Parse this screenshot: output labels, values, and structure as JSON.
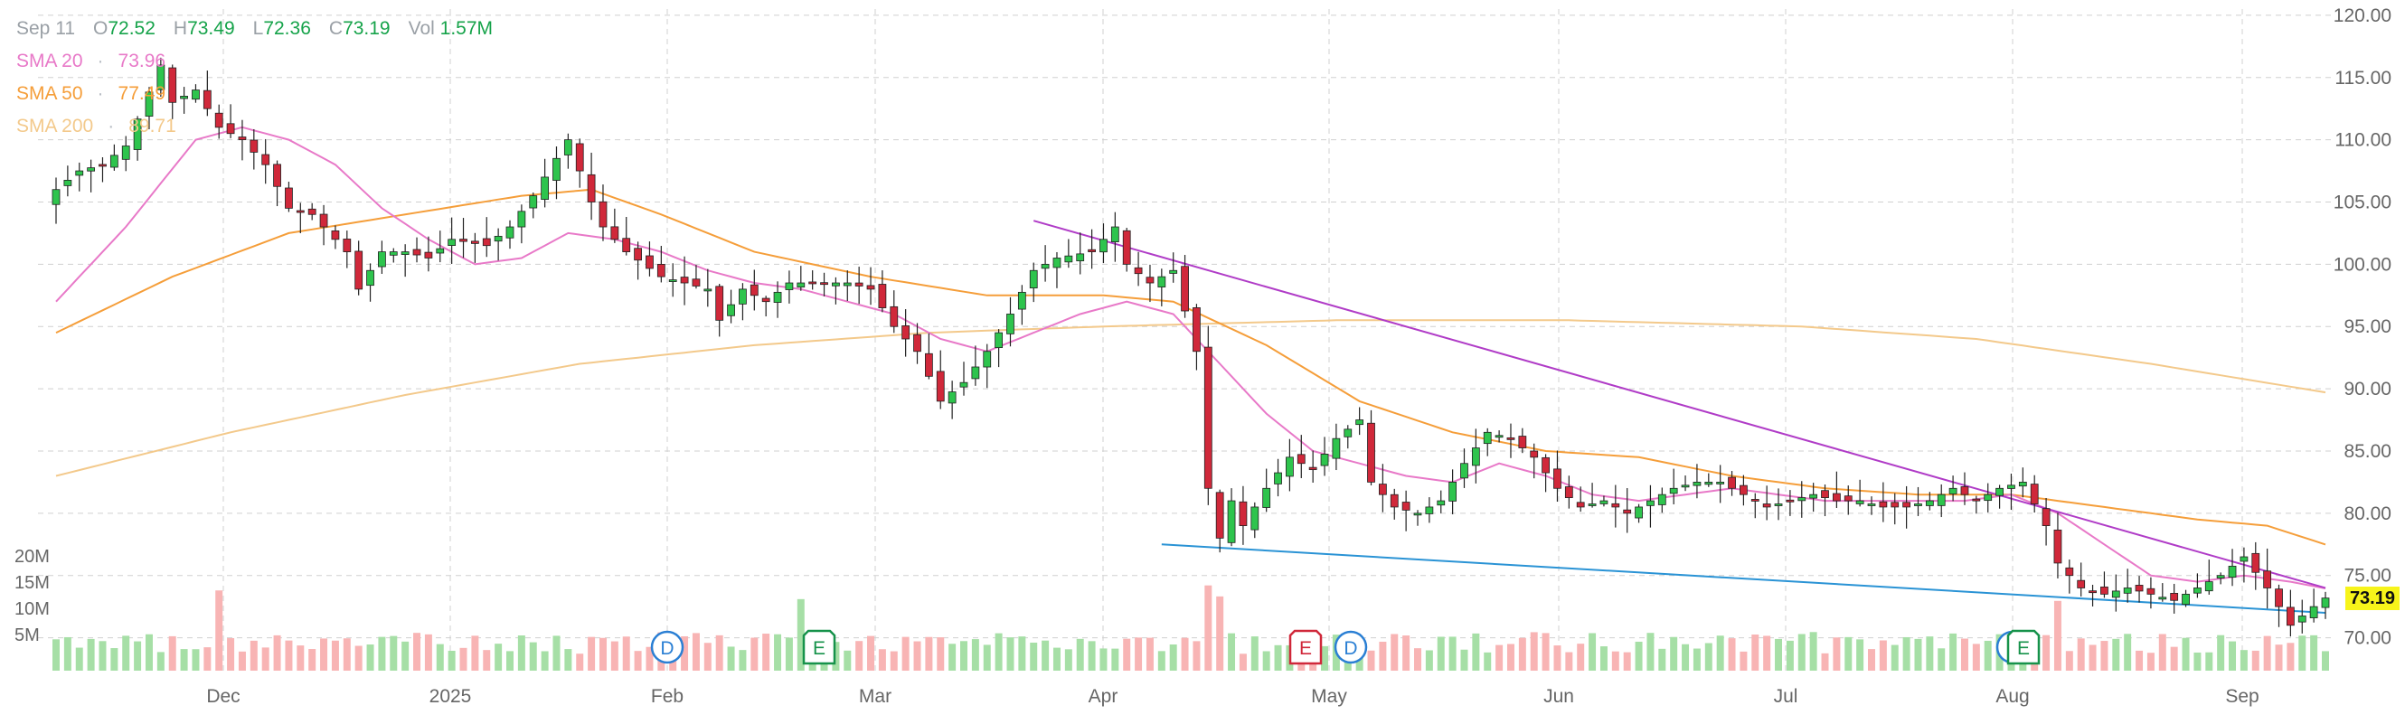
{
  "header": {
    "date": "Sep 11",
    "open_label": "O",
    "open": "72.52",
    "high_label": "H",
    "high": "73.49",
    "low_label": "L",
    "low": "72.36",
    "close_label": "C",
    "close": "73.19",
    "vol_label": "Vol",
    "vol": "1.57M"
  },
  "indicators": [
    {
      "name": "SMA 20",
      "value": "73.96",
      "color": "#e879c8"
    },
    {
      "name": "SMA 50",
      "value": "77.49",
      "color": "#f59e3a"
    },
    {
      "name": "SMA 200",
      "value": "89.71",
      "color": "#f3c98b"
    }
  ],
  "last_price_tag": "73.19",
  "colors": {
    "up": "#2ec44d",
    "down": "#d0283a",
    "vol_up": "#a6dfa6",
    "vol_down": "#f8b4b4",
    "trend_top": "#b03cc7",
    "trend_bottom": "#2a93d5",
    "grid": "#d0d0d0",
    "axis_text": "#666666"
  },
  "chart_data": {
    "type": "candlestick",
    "price_axis": {
      "min": 67.5,
      "max": 120.5,
      "ticks": [
        "120.00",
        "115.00",
        "110.00",
        "105.00",
        "100.00",
        "95.00",
        "90.00",
        "85.00",
        "80.00",
        "75.00",
        "70.00"
      ]
    },
    "volume_axis": {
      "ticks": [
        "20M",
        "15M",
        "10M",
        "5M"
      ],
      "max": 20
    },
    "x_labels": [
      "Dec",
      "2025",
      "Feb",
      "Mar",
      "Apr",
      "May",
      "Jun",
      "Jul",
      "Aug",
      "Sep"
    ],
    "events": [
      {
        "label": "D",
        "type": "dividend",
        "date": "Jan 30"
      },
      {
        "label": "E",
        "type": "earnings",
        "date": "Feb 25"
      },
      {
        "label": "E",
        "type": "earnings",
        "date": "Apr 29"
      },
      {
        "label": "D",
        "type": "dividend",
        "date": "Apr 30"
      },
      {
        "label": "D",
        "type": "dividend",
        "date": "Jul 31"
      },
      {
        "label": "E",
        "type": "earnings",
        "date": "Aug 1"
      }
    ],
    "price_path": [
      [
        0,
        106
      ],
      [
        2,
        107.5
      ],
      [
        4,
        108
      ],
      [
        6,
        109.5
      ],
      [
        9,
        116
      ],
      [
        10,
        113
      ],
      [
        12,
        114
      ],
      [
        14,
        111
      ],
      [
        16,
        110
      ],
      [
        18,
        108
      ],
      [
        20,
        104.5
      ],
      [
        22,
        104
      ],
      [
        25,
        101
      ],
      [
        26,
        98
      ],
      [
        28,
        101
      ],
      [
        30,
        101
      ],
      [
        32,
        100.5
      ],
      [
        34,
        102
      ],
      [
        37,
        101.5
      ],
      [
        39,
        103
      ],
      [
        41,
        105.5
      ],
      [
        44,
        110
      ],
      [
        46,
        105
      ],
      [
        47,
        103
      ],
      [
        49,
        101
      ],
      [
        52,
        99
      ],
      [
        54,
        98.5
      ],
      [
        56,
        98
      ],
      [
        57,
        95.5
      ],
      [
        59,
        98
      ],
      [
        61,
        97
      ],
      [
        63,
        98.5
      ],
      [
        66,
        98.5
      ],
      [
        68,
        98.5
      ],
      [
        70,
        98
      ],
      [
        72,
        95
      ],
      [
        74,
        93
      ],
      [
        76,
        89
      ],
      [
        78,
        90.5
      ],
      [
        80,
        93
      ],
      [
        82,
        96
      ],
      [
        84,
        99.5
      ],
      [
        86,
        100.5
      ],
      [
        89,
        101
      ],
      [
        91,
        103
      ],
      [
        92,
        100
      ],
      [
        94,
        98.5
      ],
      [
        96,
        99.5
      ],
      [
        98,
        93
      ],
      [
        99,
        82
      ],
      [
        100,
        78
      ],
      [
        101,
        81
      ],
      [
        102,
        79
      ],
      [
        104,
        82
      ],
      [
        106,
        84.5
      ],
      [
        108,
        83.5
      ],
      [
        110,
        86
      ],
      [
        112,
        87.5
      ],
      [
        113,
        82.5
      ],
      [
        115,
        80.5
      ],
      [
        117,
        80
      ],
      [
        119,
        81
      ],
      [
        121,
        84
      ],
      [
        123,
        86.5
      ],
      [
        125,
        86
      ],
      [
        127,
        84.5
      ],
      [
        129,
        82
      ],
      [
        131,
        80.5
      ],
      [
        133,
        81
      ],
      [
        135,
        80
      ],
      [
        137,
        81
      ],
      [
        139,
        82
      ],
      [
        141,
        82.5
      ],
      [
        143,
        82.5
      ],
      [
        145,
        81.5
      ],
      [
        147,
        80.5
      ],
      [
        149,
        81
      ],
      [
        151,
        81.5
      ],
      [
        153,
        81
      ],
      [
        155,
        81
      ],
      [
        157,
        80.5
      ],
      [
        159,
        80.5
      ],
      [
        161,
        81
      ],
      [
        163,
        82
      ],
      [
        165,
        81
      ],
      [
        167,
        82
      ],
      [
        169,
        82.5
      ],
      [
        171,
        79
      ],
      [
        172,
        76
      ],
      [
        174,
        74
      ],
      [
        176,
        73.5
      ],
      [
        178,
        74
      ],
      [
        180,
        73.5
      ],
      [
        182,
        73
      ],
      [
        184,
        74
      ],
      [
        186,
        75
      ],
      [
        188,
        76.5
      ],
      [
        190,
        74
      ],
      [
        192,
        71
      ],
      [
        194,
        72.5
      ],
      [
        195,
        73.19
      ]
    ],
    "sma20_path": [
      [
        0,
        97
      ],
      [
        6,
        103
      ],
      [
        12,
        110
      ],
      [
        16,
        111
      ],
      [
        20,
        110
      ],
      [
        24,
        108
      ],
      [
        28,
        104.5
      ],
      [
        32,
        102
      ],
      [
        36,
        100
      ],
      [
        40,
        100.5
      ],
      [
        44,
        102.5
      ],
      [
        48,
        102
      ],
      [
        52,
        101
      ],
      [
        56,
        99.5
      ],
      [
        60,
        98.5
      ],
      [
        64,
        98
      ],
      [
        68,
        97
      ],
      [
        72,
        96
      ],
      [
        76,
        94
      ],
      [
        80,
        93
      ],
      [
        84,
        94.5
      ],
      [
        88,
        96
      ],
      [
        92,
        97
      ],
      [
        96,
        96
      ],
      [
        100,
        92
      ],
      [
        104,
        88
      ],
      [
        108,
        85
      ],
      [
        112,
        84
      ],
      [
        116,
        83
      ],
      [
        120,
        82.5
      ],
      [
        124,
        84
      ],
      [
        128,
        83
      ],
      [
        132,
        81.5
      ],
      [
        136,
        81
      ],
      [
        140,
        81.5
      ],
      [
        144,
        82
      ],
      [
        148,
        81.5
      ],
      [
        152,
        81
      ],
      [
        156,
        81
      ],
      [
        160,
        81
      ],
      [
        164,
        81
      ],
      [
        168,
        81.5
      ],
      [
        172,
        80
      ],
      [
        176,
        77.5
      ],
      [
        180,
        75
      ],
      [
        184,
        74.5
      ],
      [
        188,
        75
      ],
      [
        192,
        74.5
      ],
      [
        195,
        73.96
      ]
    ],
    "sma50_path": [
      [
        0,
        94.5
      ],
      [
        10,
        99
      ],
      [
        20,
        102.5
      ],
      [
        30,
        104
      ],
      [
        40,
        105.5
      ],
      [
        46,
        106
      ],
      [
        52,
        104
      ],
      [
        60,
        101
      ],
      [
        70,
        99
      ],
      [
        80,
        97.5
      ],
      [
        90,
        97.5
      ],
      [
        96,
        97
      ],
      [
        104,
        93.5
      ],
      [
        112,
        89
      ],
      [
        120,
        86.5
      ],
      [
        128,
        85
      ],
      [
        136,
        84.5
      ],
      [
        144,
        83
      ],
      [
        152,
        82
      ],
      [
        160,
        81.5
      ],
      [
        168,
        81.5
      ],
      [
        176,
        80.5
      ],
      [
        184,
        79.5
      ],
      [
        190,
        79
      ],
      [
        195,
        77.49
      ]
    ],
    "sma200_path": [
      [
        0,
        83
      ],
      [
        15,
        86.5
      ],
      [
        30,
        89.5
      ],
      [
        45,
        92
      ],
      [
        60,
        93.5
      ],
      [
        75,
        94.5
      ],
      [
        90,
        95
      ],
      [
        110,
        95.5
      ],
      [
        130,
        95.5
      ],
      [
        150,
        95
      ],
      [
        165,
        94
      ],
      [
        180,
        92
      ],
      [
        195,
        89.71
      ]
    ],
    "trendlines": [
      {
        "from": [
          84,
          103.5
        ],
        "to": [
          195,
          74
        ]
      },
      {
        "from": [
          95,
          77.5
        ],
        "to": [
          195,
          72
        ]
      }
    ],
    "bars_count": 196
  }
}
